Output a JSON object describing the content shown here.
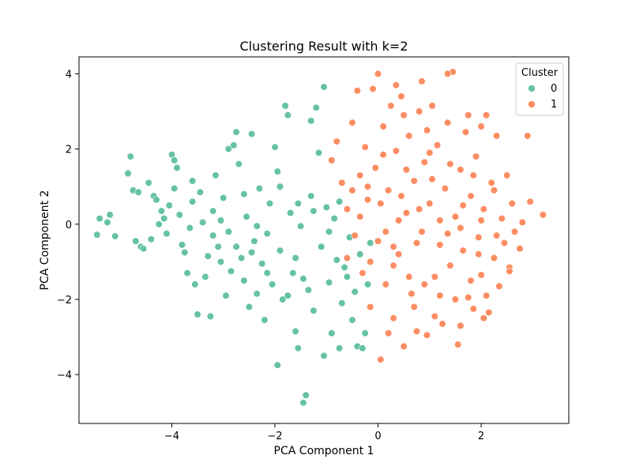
{
  "chart_data": {
    "type": "scatter",
    "title": "Clustering Result with k=2",
    "xlabel": "PCA Component 1",
    "ylabel": "PCA Component 2",
    "xlim": [
      -5.8,
      3.7
    ],
    "ylim": [
      -5.3,
      4.45
    ],
    "xticks": [
      -4,
      -2,
      0,
      2
    ],
    "yticks": [
      -4,
      -2,
      0,
      2,
      4
    ],
    "tick_labels_x": [
      "−4",
      "−2",
      "0",
      "2"
    ],
    "tick_labels_y": [
      "−4",
      "−2",
      "0",
      "2",
      "4"
    ],
    "grid": false,
    "legend": {
      "title": "Cluster",
      "placement": "top-right"
    },
    "series": [
      {
        "name": "0",
        "color": "#66c2a5",
        "points": [
          [
            -5.45,
            -0.28
          ],
          [
            -5.4,
            0.15
          ],
          [
            -5.25,
            0.05
          ],
          [
            -5.2,
            0.25
          ],
          [
            -5.1,
            -0.32
          ],
          [
            -4.85,
            1.35
          ],
          [
            -4.8,
            1.8
          ],
          [
            -4.75,
            0.9
          ],
          [
            -4.7,
            -0.45
          ],
          [
            -4.65,
            0.85
          ],
          [
            -4.6,
            -0.6
          ],
          [
            -4.55,
            -0.65
          ],
          [
            -4.45,
            1.1
          ],
          [
            -4.4,
            -0.4
          ],
          [
            -4.35,
            0.75
          ],
          [
            -4.25,
            0.0
          ],
          [
            -4.2,
            0.35
          ],
          [
            -4.15,
            0.15
          ],
          [
            -4.1,
            -0.25
          ],
          [
            -4.05,
            0.5
          ],
          [
            -4.0,
            1.85
          ],
          [
            -3.95,
            1.7
          ],
          [
            -3.9,
            1.5
          ],
          [
            -3.95,
            0.95
          ],
          [
            -3.85,
            0.25
          ],
          [
            -3.8,
            -0.55
          ],
          [
            -3.75,
            -0.75
          ],
          [
            -3.7,
            -1.3
          ],
          [
            -3.65,
            -0.1
          ],
          [
            -3.6,
            0.6
          ],
          [
            -3.55,
            -1.6
          ],
          [
            -3.5,
            -2.4
          ],
          [
            -3.45,
            0.85
          ],
          [
            -3.4,
            0.05
          ],
          [
            -3.35,
            -1.4
          ],
          [
            -3.3,
            -0.85
          ],
          [
            -3.25,
            -2.45
          ],
          [
            -3.2,
            0.35
          ],
          [
            -3.15,
            1.3
          ],
          [
            -3.1,
            -0.6
          ],
          [
            -3.05,
            -1.0
          ],
          [
            -3.0,
            0.7
          ],
          [
            -2.95,
            -1.9
          ],
          [
            -2.9,
            -0.2
          ],
          [
            -2.85,
            -1.25
          ],
          [
            -2.8,
            2.1
          ],
          [
            -2.75,
            2.45
          ],
          [
            -2.7,
            1.6
          ],
          [
            -2.65,
            -0.9
          ],
          [
            -2.6,
            -1.5
          ],
          [
            -2.55,
            0.2
          ],
          [
            -2.5,
            -2.2
          ],
          [
            -2.45,
            2.4
          ],
          [
            -2.4,
            -0.45
          ],
          [
            -2.35,
            -1.85
          ],
          [
            -2.3,
            0.95
          ],
          [
            -2.25,
            -1.05
          ],
          [
            -2.2,
            -2.55
          ],
          [
            -2.15,
            -0.25
          ],
          [
            -2.1,
            0.55
          ],
          [
            -2.05,
            -1.6
          ],
          [
            -2.0,
            2.05
          ],
          [
            -1.95,
            1.4
          ],
          [
            -1.9,
            -0.7
          ],
          [
            -1.85,
            -2.0
          ],
          [
            -1.8,
            3.15
          ],
          [
            -1.75,
            2.9
          ],
          [
            -1.7,
            0.3
          ],
          [
            -1.65,
            -1.3
          ],
          [
            -1.6,
            -2.85
          ],
          [
            -1.55,
            -3.3
          ],
          [
            -1.5,
            -0.05
          ],
          [
            -1.45,
            -4.75
          ],
          [
            -1.4,
            -4.55
          ],
          [
            -1.35,
            -1.75
          ],
          [
            -1.3,
            0.75
          ],
          [
            -1.25,
            -2.3
          ],
          [
            -1.2,
            3.1
          ],
          [
            -1.15,
            1.9
          ],
          [
            -1.1,
            -0.6
          ],
          [
            -1.05,
            -3.5
          ],
          [
            -1.0,
            0.45
          ],
          [
            -0.95,
            -1.55
          ],
          [
            -0.9,
            -2.9
          ],
          [
            -0.85,
            0.15
          ],
          [
            -0.8,
            -0.95
          ],
          [
            -0.75,
            -3.3
          ],
          [
            -0.7,
            -2.1
          ],
          [
            -0.6,
            -1.4
          ],
          [
            -0.55,
            -0.35
          ],
          [
            -0.5,
            -2.55
          ],
          [
            -0.45,
            -1.8
          ],
          [
            -0.4,
            -3.25
          ],
          [
            -0.35,
            -0.8
          ],
          [
            -0.3,
            -3.3
          ],
          [
            -0.25,
            -2.9
          ],
          [
            -0.2,
            -1.6
          ],
          [
            -0.15,
            -0.5
          ],
          [
            -1.05,
            3.65
          ],
          [
            -1.3,
            2.75
          ],
          [
            -1.95,
            -3.75
          ],
          [
            -2.9,
            2.0
          ],
          [
            -3.6,
            1.15
          ],
          [
            -4.3,
            0.65
          ],
          [
            -3.2,
            -0.3
          ],
          [
            -2.6,
            0.8
          ],
          [
            -1.9,
            1.0
          ],
          [
            -1.6,
            -0.9
          ],
          [
            -0.95,
            -0.2
          ],
          [
            -2.35,
            -0.05
          ],
          [
            -2.75,
            -0.6
          ],
          [
            -3.05,
            0.1
          ],
          [
            -2.15,
            -1.3
          ],
          [
            -1.45,
            -1.45
          ],
          [
            -1.75,
            -1.9
          ],
          [
            -0.65,
            -1.15
          ],
          [
            -1.25,
            0.35
          ],
          [
            -2.45,
            -0.75
          ],
          [
            -1.55,
            0.55
          ],
          [
            -0.75,
            0.6
          ]
        ]
      },
      {
        "name": "1",
        "color": "#fc8d62",
        "points": [
          [
            -0.9,
            1.7
          ],
          [
            -0.8,
            2.2
          ],
          [
            -0.7,
            1.1
          ],
          [
            -0.6,
            0.4
          ],
          [
            -0.5,
            2.7
          ],
          [
            -0.45,
            -0.3
          ],
          [
            -0.4,
            3.55
          ],
          [
            -0.35,
            1.3
          ],
          [
            -0.3,
            -1.3
          ],
          [
            -0.25,
            2.05
          ],
          [
            -0.2,
            0.65
          ],
          [
            -0.15,
            -2.2
          ],
          [
            -0.1,
            3.6
          ],
          [
            -0.05,
            1.5
          ],
          [
            0.0,
            -0.45
          ],
          [
            0.0,
            4.0
          ],
          [
            0.05,
            -3.6
          ],
          [
            0.1,
            2.6
          ],
          [
            0.15,
            -1.6
          ],
          [
            0.2,
            0.9
          ],
          [
            0.25,
            3.15
          ],
          [
            0.3,
            -2.5
          ],
          [
            0.35,
            1.95
          ],
          [
            0.4,
            -0.8
          ],
          [
            0.45,
            3.4
          ],
          [
            0.5,
            -3.25
          ],
          [
            0.55,
            0.3
          ],
          [
            0.6,
            2.35
          ],
          [
            0.65,
            -1.85
          ],
          [
            0.7,
            1.15
          ],
          [
            0.75,
            -2.85
          ],
          [
            0.8,
            3.0
          ],
          [
            0.85,
            -0.2
          ],
          [
            0.9,
            1.65
          ],
          [
            0.95,
            -2.95
          ],
          [
            1.0,
            0.55
          ],
          [
            1.05,
            3.15
          ],
          [
            1.1,
            -1.4
          ],
          [
            1.15,
            2.1
          ],
          [
            1.2,
            -0.55
          ],
          [
            1.25,
            -2.65
          ],
          [
            1.3,
            0.95
          ],
          [
            1.35,
            2.7
          ],
          [
            1.4,
            -1.1
          ],
          [
            1.45,
            4.05
          ],
          [
            1.5,
            0.2
          ],
          [
            1.55,
            -3.2
          ],
          [
            1.6,
            1.45
          ],
          [
            1.65,
            -0.7
          ],
          [
            1.7,
            2.45
          ],
          [
            1.75,
            -1.95
          ],
          [
            1.8,
            0.75
          ],
          [
            1.85,
            -2.25
          ],
          [
            1.9,
            1.8
          ],
          [
            1.95,
            -0.35
          ],
          [
            2.0,
            -1.35
          ],
          [
            2.05,
            0.4
          ],
          [
            2.1,
            2.9
          ],
          [
            2.15,
            -2.35
          ],
          [
            2.2,
            1.1
          ],
          [
            2.25,
            -0.9
          ],
          [
            2.3,
            2.35
          ],
          [
            2.35,
            -1.65
          ],
          [
            2.4,
            0.15
          ],
          [
            2.45,
            -0.5
          ],
          [
            2.5,
            1.3
          ],
          [
            2.55,
            -1.15
          ],
          [
            2.6,
            0.55
          ],
          [
            2.65,
            -0.2
          ],
          [
            2.75,
            -0.65
          ],
          [
            2.8,
            0.05
          ],
          [
            2.9,
            2.35
          ],
          [
            2.95,
            0.6
          ],
          [
            3.2,
            0.25
          ],
          [
            1.35,
            4.0
          ],
          [
            0.85,
            3.8
          ],
          [
            0.35,
            3.7
          ],
          [
            1.75,
            2.9
          ],
          [
            2.0,
            2.6
          ],
          [
            2.55,
            -1.25
          ],
          [
            -0.6,
            -0.9
          ],
          [
            -0.5,
            0.9
          ],
          [
            -0.2,
            1.0
          ],
          [
            0.15,
            -0.2
          ],
          [
            0.45,
            0.75
          ],
          [
            0.75,
            -0.5
          ],
          [
            1.05,
            1.2
          ],
          [
            1.35,
            -0.25
          ],
          [
            1.65,
            0.5
          ],
          [
            1.95,
            -0.8
          ],
          [
            2.25,
            0.9
          ],
          [
            0.3,
            -1.1
          ],
          [
            0.6,
            -1.4
          ],
          [
            0.9,
            -1.6
          ],
          [
            1.2,
            -1.9
          ],
          [
            1.5,
            -2.0
          ],
          [
            1.8,
            -1.5
          ],
          [
            2.1,
            -1.9
          ],
          [
            0.4,
            0.1
          ],
          [
            0.8,
            0.4
          ],
          [
            1.2,
            0.1
          ],
          [
            1.6,
            -0.1
          ],
          [
            2.0,
            0.1
          ],
          [
            -0.35,
            0.2
          ],
          [
            0.05,
            0.55
          ],
          [
            0.55,
            1.45
          ],
          [
            1.0,
            1.9
          ],
          [
            1.4,
            1.6
          ],
          [
            1.85,
            1.3
          ],
          [
            2.3,
            -0.3
          ],
          [
            0.2,
            -2.9
          ],
          [
            0.7,
            -2.2
          ],
          [
            1.1,
            -2.45
          ],
          [
            1.6,
            -2.7
          ],
          [
            2.05,
            -2.5
          ],
          [
            0.95,
            2.5
          ],
          [
            0.5,
            2.9
          ],
          [
            0.1,
            1.85
          ],
          [
            -0.15,
            -1.0
          ],
          [
            0.3,
            -0.6
          ]
        ]
      }
    ]
  }
}
